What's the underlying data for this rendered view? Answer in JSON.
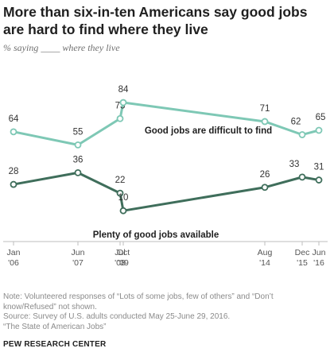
{
  "header": {
    "title": "More than six-in-ten Americans say good jobs are hard to find where they live",
    "subtitle": "% saying ____ where they live"
  },
  "chart_data": {
    "type": "line",
    "categories": [
      "Jan '06",
      "Jun '07",
      "Jul '08",
      "Oct '09",
      "Aug '14",
      "Dec '15",
      "Jun '16"
    ],
    "x_ticks": [
      [
        "Jan",
        "'06"
      ],
      [
        "Jun",
        "'07"
      ],
      [
        "Jul",
        "'08"
      ],
      [
        "Oct",
        "'09"
      ],
      [
        "Aug",
        "'14"
      ],
      [
        "Dec",
        "'15"
      ],
      [
        "Jun",
        "'16"
      ]
    ],
    "series": [
      {
        "name": "Good jobs are difficult to find",
        "values": [
          64,
          55,
          73,
          84,
          71,
          62,
          65
        ],
        "color": "#7ec8b5"
      },
      {
        "name": "Plenty of good jobs available",
        "values": [
          28,
          36,
          22,
          10,
          26,
          33,
          31
        ],
        "color": "#3f6e5b"
      }
    ],
    "legend": "inline labels"
  },
  "notes": {
    "note": "Note: Volunteered responses of “Lots of some jobs, few of others” and “Don’t know/Refused” not shown.",
    "source": "Source: Survey of U.S. adults conducted May 25-June 29, 2016.",
    "report": "“The State of American Jobs”"
  },
  "footer": {
    "org": "PEW RESEARCH CENTER"
  }
}
